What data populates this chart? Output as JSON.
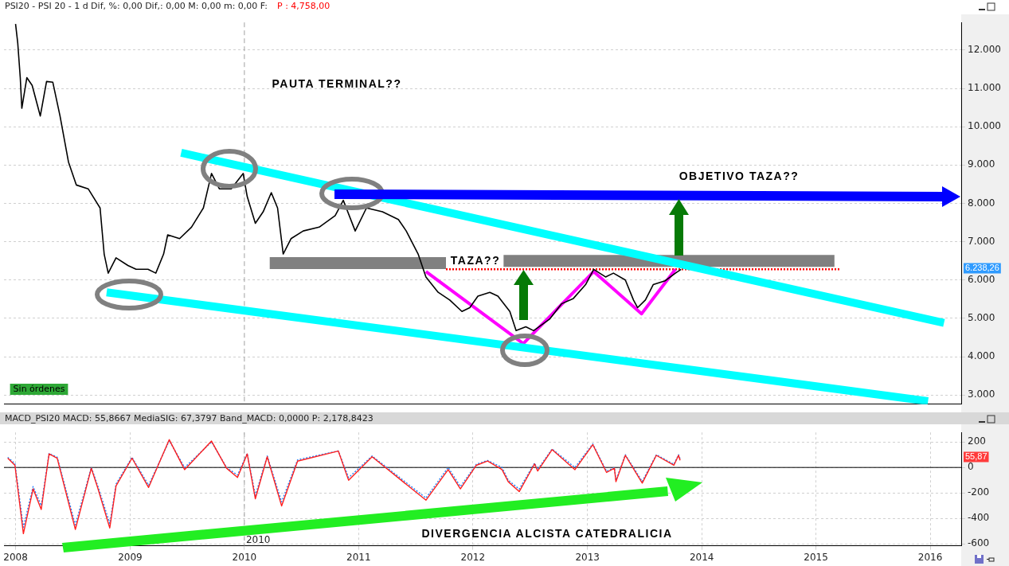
{
  "chart_data": [
    {
      "type": "line",
      "title": "PSI20 - PSI 20 -  1 d Dif, %: 0,00 Dif,: 0,00 M: 0,00 m: 0,00 F:",
      "subtitle": "P : 4,758,00",
      "xlim": [
        "2007-11-25",
        "2016-04-09"
      ],
      "xticks": [
        {
          "value": "2008-01-01",
          "label": null
        },
        {
          "value": "2009-01-01",
          "label": null
        },
        {
          "value": "2010-01-01",
          "label": null
        },
        {
          "value": "2011-01-01",
          "label": null
        },
        {
          "value": "2012-01-01",
          "label": null
        },
        {
          "value": "2013-01-01",
          "label": null
        },
        {
          "value": "2014-01-01",
          "label": null
        },
        {
          "value": "2015-01-01",
          "label": null
        },
        {
          "value": "2016-01-01",
          "label": null
        }
      ],
      "ylim": [
        2760,
        12720
      ],
      "yticks": [
        {
          "value": 3000,
          "label": "3.000"
        },
        {
          "value": 4000,
          "label": "4.000"
        },
        {
          "value": 5000,
          "label": "5.000"
        },
        {
          "value": 6000,
          "label": "6.000"
        },
        {
          "value": 7000,
          "label": "7.000"
        },
        {
          "value": 8000,
          "label": "8.000"
        },
        {
          "value": 9000,
          "label": "9.000"
        },
        {
          "value": 10000,
          "label": "10.000"
        },
        {
          "value": 11000,
          "label": "11.000"
        },
        {
          "value": 12000,
          "label": "12.000"
        }
      ],
      "tick_labels": "y",
      "grid": true,
      "marker": "none",
      "series": [
        {
          "color": "#000000",
          "x": [
            "2008-01-01",
            "2008-01-08",
            "2008-01-16",
            "2008-01-21",
            "2008-02-06",
            "2008-02-23",
            "2008-03-20",
            "2008-04-09",
            "2008-04-29",
            "2008-05-22",
            "2008-06-18",
            "2008-07-13",
            "2008-08-20",
            "2008-09-27",
            "2008-10-10",
            "2008-10-23",
            "2008-11-17",
            "2008-12-25",
            "2009-01-20",
            "2009-02-27",
            "2009-03-24",
            "2009-04-18",
            "2009-05-01",
            "2009-06-08",
            "2009-07-16",
            "2009-08-23",
            "2009-09-18",
            "2009-10-13",
            "2009-11-20",
            "2009-12-28",
            "2010-01-10",
            "2010-02-05",
            "2010-03-02",
            "2010-03-28",
            "2010-04-17",
            "2010-05-05",
            "2010-05-30",
            "2010-07-08",
            "2010-08-28",
            "2010-10-18",
            "2010-11-13",
            "2010-12-21",
            "2011-01-26",
            "2011-03-18",
            "2011-05-08",
            "2011-06-02",
            "2011-07-10",
            "2011-08-04",
            "2011-09-12",
            "2011-10-19",
            "2011-11-27",
            "2011-12-22",
            "2012-01-17",
            "2012-02-24",
            "2012-03-21",
            "2012-04-28",
            "2012-05-18",
            "2012-06-18",
            "2012-07-13",
            "2012-09-02",
            "2012-10-10",
            "2012-11-17",
            "2012-12-26",
            "2013-01-21",
            "2013-02-28",
            "2013-03-25",
            "2013-05-02",
            "2013-05-28",
            "2013-06-10",
            "2013-07-05",
            "2013-07-30",
            "2013-09-06",
            "2013-10-09",
            "2013-10-27"
          ],
          "values": [
            12680,
            12180,
            11280,
            10480,
            11280,
            11080,
            10280,
            11180,
            11160,
            10280,
            9080,
            8480,
            8380,
            7880,
            6680,
            6180,
            6580,
            6380,
            6280,
            6280,
            6180,
            6680,
            7180,
            7080,
            7380,
            7880,
            8780,
            8380,
            8380,
            8780,
            8180,
            7480,
            7780,
            8280,
            7880,
            6680,
            7080,
            7280,
            7380,
            7680,
            8080,
            7280,
            7880,
            7780,
            7580,
            7280,
            6680,
            6080,
            5680,
            5480,
            5180,
            5280,
            5580,
            5680,
            5580,
            5180,
            4680,
            4780,
            4680,
            4980,
            5380,
            5520,
            5880,
            6280,
            6080,
            6180,
            6000,
            5480,
            5280,
            5480,
            5880,
            5980,
            6180,
            6280
          ]
        },
        {
          "color": "#00ffff",
          "x": [
            "2009-06-13",
            "2016-02-14"
          ],
          "values": [
            9320,
            4880
          ]
        },
        {
          "color": "#00ffff",
          "x": [
            "2008-10-18",
            "2015-12-25"
          ],
          "values": [
            5680,
            2840
          ]
        },
        {
          "color": "#ff00ff",
          "x": [
            "2011-08-04",
            "2012-06-10",
            "2013-01-21",
            "2013-06-23",
            "2013-10-09"
          ],
          "values": [
            6220,
            4340,
            6220,
            5120,
            6280
          ]
        },
        {
          "color": "#808080",
          "x": [
            "2010-03-23",
            "2011-10-07"
          ],
          "values": [
            6440,
            6440
          ]
        },
        {
          "color": "#808080",
          "x": [
            "2012-04-08",
            "2015-03-01"
          ],
          "values": [
            6500,
            6500
          ]
        },
        {
          "color": "#ff0000",
          "line_style": "dotted",
          "x": [
            "2011-10-07",
            "2015-03-19"
          ],
          "values": [
            6280,
            6280
          ]
        }
      ],
      "ref_lines": [
        {
          "axis": "x",
          "value": "2010-01-01",
          "color": "#a0a0a0",
          "line_style": "dashed"
        }
      ],
      "annotations": [
        "PAUTA TERMINAL??",
        "Sin órdenes",
        "TAZA??",
        "OBJETIVO TAZA??",
        "6.238,26"
      ]
    },
    {
      "type": "line",
      "title": "MACD_PSI20 MACD: 55,8667 MediaSIG: 67,3797 Band_MACD: 0,0000 P: 2,178,8423",
      "xlim": [
        "2007-11-25",
        "2016-04-09"
      ],
      "xticks": [
        {
          "value": "2008-01-01",
          "label": "2008"
        },
        {
          "value": "2009-01-01",
          "label": "2009"
        },
        {
          "value": "2010-01-01",
          "label": "2010"
        },
        {
          "value": "2011-01-01",
          "label": "2011"
        },
        {
          "value": "2012-01-01",
          "label": "2012"
        },
        {
          "value": "2013-01-01",
          "label": "2013"
        },
        {
          "value": "2014-01-01",
          "label": "2014"
        },
        {
          "value": "2015-01-01",
          "label": "2015"
        },
        {
          "value": "2016-01-01",
          "label": "2016"
        }
      ],
      "ylim": [
        -615,
        275
      ],
      "yticks": [
        -600,
        -400,
        -200,
        0,
        200
      ],
      "grid": true,
      "marker": "none",
      "x": [
        "2007-12-07",
        "2007-12-30",
        "2008-01-26",
        "2008-02-26",
        "2008-03-23",
        "2008-04-17",
        "2008-05-13",
        "2008-07-10",
        "2008-08-30",
        "2008-09-19",
        "2008-10-28",
        "2008-11-17",
        "2009-01-07",
        "2009-03-01",
        "2009-05-06",
        "2009-06-24",
        "2009-09-18",
        "2009-11-05",
        "2009-12-10",
        "2010-01-10",
        "2010-02-05",
        "2010-03-15",
        "2010-04-30",
        "2010-06-20",
        "2010-10-28",
        "2010-11-30",
        "2011-02-13",
        "2011-08-04",
        "2011-10-14",
        "2011-11-22",
        "2012-01-12",
        "2012-02-17",
        "2012-04-03",
        "2012-04-23",
        "2012-05-28",
        "2012-07-16",
        "2012-07-26",
        "2012-09-10",
        "2012-11-22",
        "2013-01-18",
        "2013-03-03",
        "2013-03-28",
        "2013-04-02",
        "2013-05-02",
        "2013-06-25",
        "2013-08-09",
        "2013-10-04",
        "2013-10-19",
        "2013-10-24"
      ],
      "series": [
        {
          "color": "#ff2020",
          "values": [
            73,
            17,
            -520,
            -168,
            -330,
            106,
            73,
            -486,
            -6,
            -157,
            -475,
            -145,
            73,
            -157,
            218,
            -17,
            207,
            -6,
            -78,
            106,
            -246,
            84,
            -302,
            50,
            129,
            -101,
            84,
            -257,
            -17,
            -168,
            17,
            50,
            -17,
            -112,
            -190,
            28,
            -28,
            140,
            -17,
            179,
            -39,
            -6,
            -112,
            95,
            -123,
            95,
            17,
            95,
            56
          ]
        },
        {
          "color": "#2080ff",
          "line_style": "dotted",
          "values": [
            80,
            30,
            -470,
            -150,
            -300,
            110,
            80,
            -450,
            0,
            -140,
            -440,
            -130,
            80,
            -140,
            210,
            0,
            200,
            0,
            -60,
            110,
            -220,
            90,
            -270,
            60,
            130,
            -80,
            90,
            -240,
            0,
            -150,
            25,
            55,
            0,
            -100,
            -170,
            35,
            -15,
            145,
            0,
            185,
            -30,
            0,
            -100,
            100,
            -110,
            100,
            25,
            100,
            67
          ]
        }
      ],
      "ref_lines": [
        {
          "axis": "y",
          "value": 0,
          "color": "#000000"
        },
        {
          "axis": "x",
          "value": "2010-01-01",
          "label": "2010",
          "color": "#a0a0a0",
          "line_style": "dashed"
        }
      ],
      "annotations": [
        "DIVERGENCIA ALCISTA CATEDRALICIA",
        "55,87"
      ]
    }
  ]
}
